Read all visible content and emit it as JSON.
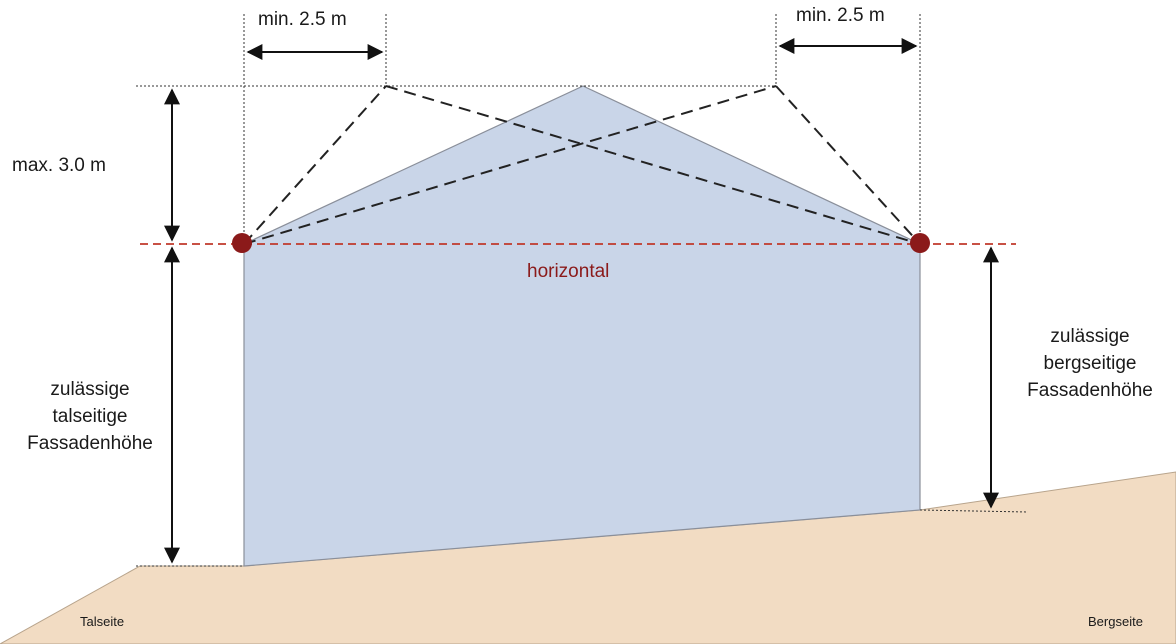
{
  "diagram": {
    "labels": {
      "min_left": "min. 2.5 m",
      "min_right": "min. 2.5 m",
      "max_height": "max. 3.0 m",
      "horizontal": "horizontal",
      "left_facade": [
        "zulässige",
        "talseitige",
        "Fassadenhöhe"
      ],
      "right_facade": [
        "zulässige",
        "bergseitige",
        "Fassadenhöhe"
      ],
      "talseite": "Talseite",
      "bergseite": "Bergseite"
    },
    "colors": {
      "building_fill": "#c9d5e8",
      "building_stroke": "#8a8f9a",
      "ground_fill": "#f2dcc3",
      "ground_stroke": "#b8a48c",
      "marker": "#8b1a1a",
      "horizontal_line": "#c0392b",
      "dimension": "#111111"
    }
  }
}
